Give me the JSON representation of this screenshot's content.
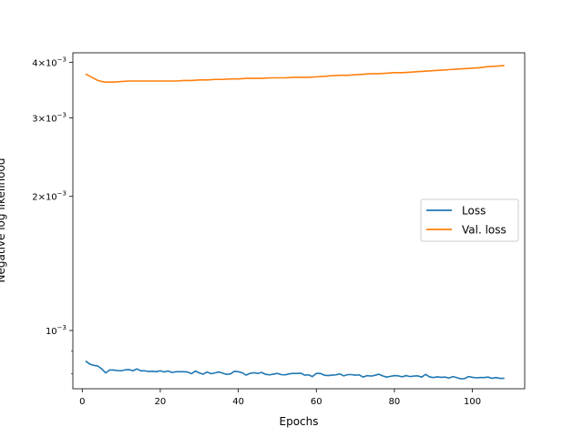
{
  "chart_data": {
    "type": "line",
    "title": "",
    "xlabel": "Epochs",
    "ylabel": "Negative log likelihood",
    "yscale": "log",
    "xlim": [
      -2.4,
      113.4
    ],
    "ylim": [
      0.00074,
      0.0042
    ],
    "grid": false,
    "legend_position": "center-right",
    "x_ticks": [
      {
        "value": 0,
        "label": "0"
      },
      {
        "value": 20,
        "label": "20"
      },
      {
        "value": 40,
        "label": "40"
      },
      {
        "value": 60,
        "label": "60"
      },
      {
        "value": 80,
        "label": "80"
      },
      {
        "value": 100,
        "label": "100"
      }
    ],
    "y_major_ticks": [
      {
        "value": 0.001,
        "mantissa": "",
        "exponent": "−3"
      },
      {
        "value": 0.002,
        "mantissa": "2",
        "exponent": "−3"
      },
      {
        "value": 0.003,
        "mantissa": "3",
        "exponent": "−3"
      },
      {
        "value": 0.004,
        "mantissa": "4",
        "exponent": "−3"
      }
    ],
    "y_minor_ticks": [
      0.0008,
      0.0009
    ],
    "series": [
      {
        "name": "Loss",
        "color": "#1f77b4",
        "x": [
          1,
          2,
          3,
          4,
          5,
          6,
          7,
          8,
          9,
          10,
          11,
          12,
          13,
          14,
          15,
          16,
          17,
          18,
          19,
          20,
          21,
          22,
          23,
          24,
          25,
          26,
          27,
          28,
          29,
          30,
          31,
          32,
          33,
          34,
          35,
          36,
          37,
          38,
          39,
          40,
          41,
          42,
          43,
          44,
          45,
          46,
          47,
          48,
          49,
          50,
          51,
          52,
          53,
          54,
          55,
          56,
          57,
          58,
          59,
          60,
          61,
          62,
          63,
          64,
          65,
          66,
          67,
          68,
          69,
          70,
          71,
          72,
          73,
          74,
          75,
          76,
          77,
          78,
          79,
          80,
          81,
          82,
          83,
          84,
          85,
          86,
          87,
          88,
          89,
          90,
          91,
          92,
          93,
          94,
          95,
          96,
          97,
          98,
          99,
          100,
          101,
          102,
          103,
          104,
          105,
          106,
          107,
          108
        ],
        "y": [
          0.000852,
          0.00084,
          0.000835,
          0.000832,
          0.00082,
          0.000803,
          0.000815,
          0.000815,
          0.000813,
          0.000812,
          0.000816,
          0.000817,
          0.000812,
          0.00082,
          0.000812,
          0.000812,
          0.000809,
          0.00081,
          0.000808,
          0.000812,
          0.000807,
          0.000811,
          0.000805,
          0.000808,
          0.000808,
          0.000808,
          0.000807,
          0.0008,
          0.000811,
          0.000803,
          0.000798,
          0.000807,
          0.0008,
          0.000803,
          0.000807,
          0.000802,
          0.000797,
          0.000799,
          0.00081,
          0.000808,
          0.000804,
          0.000794,
          0.000801,
          0.000804,
          0.000801,
          0.000805,
          0.000797,
          0.000795,
          0.000798,
          0.000801,
          0.000796,
          0.000795,
          0.000799,
          0.000801,
          0.000801,
          0.000802,
          0.000794,
          0.000795,
          0.000788,
          0.000801,
          0.000801,
          0.000794,
          0.000792,
          0.000794,
          0.000795,
          0.000799,
          0.000791,
          0.000796,
          0.000796,
          0.000794,
          0.000795,
          0.000786,
          0.000792,
          0.00079,
          0.000793,
          0.000798,
          0.000791,
          0.000786,
          0.000789,
          0.000792,
          0.000791,
          0.000787,
          0.000792,
          0.000788,
          0.00079,
          0.000791,
          0.000786,
          0.000797,
          0.000787,
          0.000784,
          0.000787,
          0.000785,
          0.000786,
          0.000782,
          0.000788,
          0.000784,
          0.000779,
          0.00078,
          0.000788,
          0.000785,
          0.000783,
          0.000784,
          0.000784,
          0.000786,
          0.000781,
          0.000784,
          0.000781,
          0.000781
        ]
      },
      {
        "name": "Val. loss",
        "color": "#ff7f0e",
        "x": [
          1,
          2,
          3,
          4,
          5,
          6,
          7,
          8,
          10,
          12,
          14,
          16,
          18,
          20,
          22,
          24,
          26,
          28,
          30,
          32,
          34,
          36,
          38,
          40,
          42,
          44,
          46,
          48,
          50,
          52,
          54,
          56,
          58,
          60,
          62,
          64,
          66,
          68,
          70,
          72,
          74,
          76,
          78,
          80,
          82,
          84,
          86,
          88,
          90,
          92,
          94,
          96,
          98,
          100,
          102,
          104,
          106,
          108
        ],
        "y": [
          0.00376,
          0.00372,
          0.00368,
          0.00364,
          0.00362,
          0.00361,
          0.00361,
          0.00361,
          0.00362,
          0.00363,
          0.00363,
          0.00363,
          0.00363,
          0.00363,
          0.00363,
          0.00363,
          0.00364,
          0.00364,
          0.00365,
          0.00365,
          0.00366,
          0.00366,
          0.00367,
          0.00367,
          0.00368,
          0.00368,
          0.00368,
          0.00369,
          0.00369,
          0.00369,
          0.0037,
          0.0037,
          0.0037,
          0.00371,
          0.00372,
          0.00373,
          0.00374,
          0.00374,
          0.00375,
          0.00376,
          0.00377,
          0.00377,
          0.00378,
          0.00379,
          0.00379,
          0.0038,
          0.00381,
          0.00382,
          0.00383,
          0.00384,
          0.00385,
          0.00386,
          0.00387,
          0.00388,
          0.00389,
          0.00391,
          0.00392,
          0.00393
        ]
      }
    ]
  }
}
